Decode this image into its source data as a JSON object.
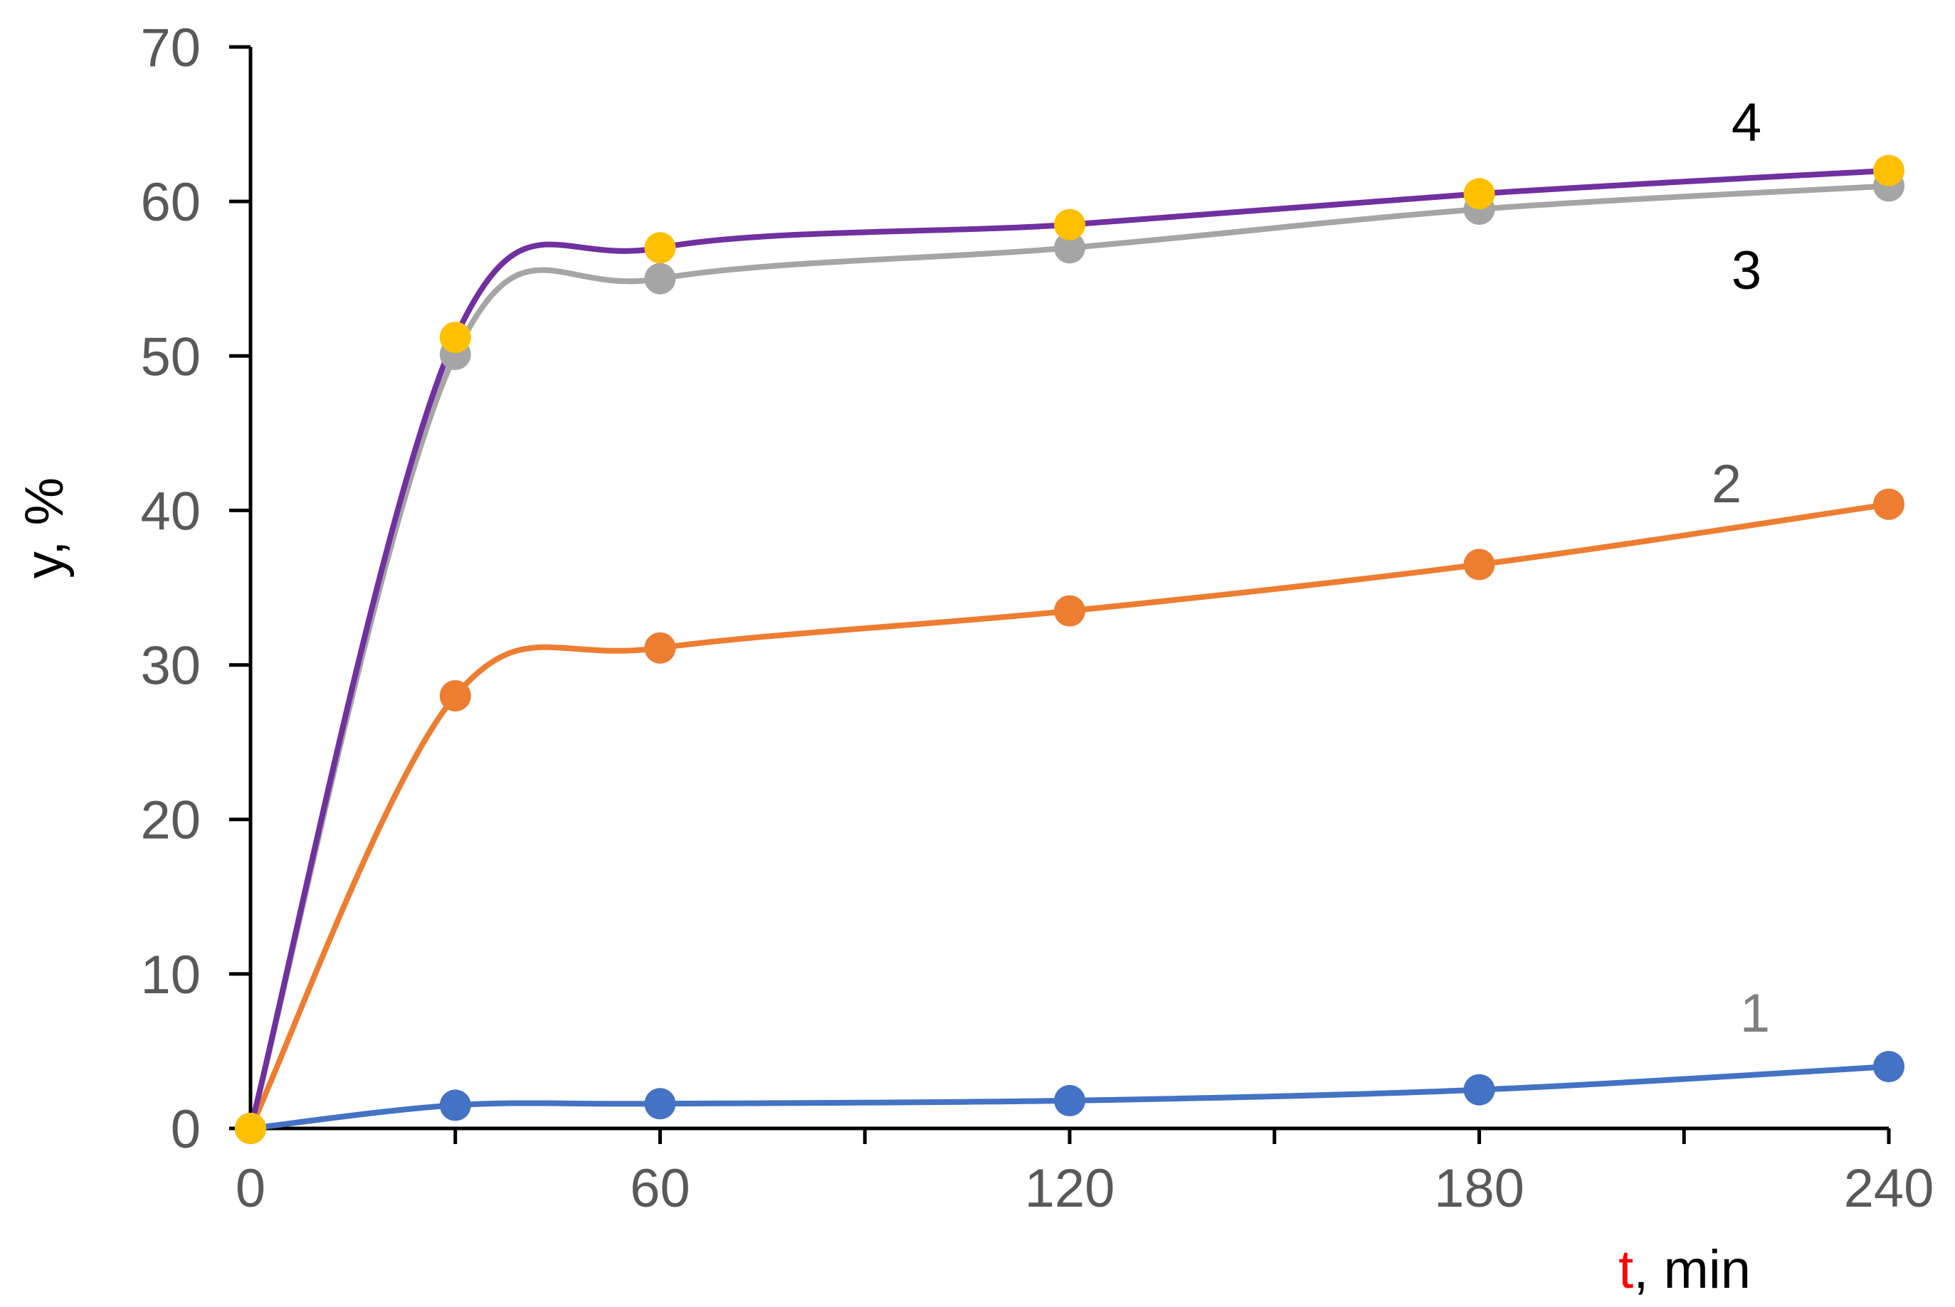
{
  "chart_data": {
    "type": "line",
    "title": "",
    "xlabel": {
      "variable": "t",
      "variable_color": "#ff0000",
      "unit": ", min"
    },
    "ylabel": "y, %",
    "xlim": [
      0,
      240
    ],
    "ylim": [
      0,
      70
    ],
    "x_ticks": [
      "0",
      "60",
      "120",
      "180",
      "240"
    ],
    "x_minor_ticks": [
      30,
      90,
      150,
      210
    ],
    "y_ticks": [
      "0",
      "10",
      "20",
      "30",
      "40",
      "50",
      "60",
      "70"
    ],
    "grid": false,
    "legend": "none",
    "x": [
      0,
      30,
      60,
      120,
      180,
      240
    ],
    "series": [
      {
        "name": "1",
        "line_color": "#4472c4",
        "marker_color": "#4472c4",
        "label_color": "#7f7f7f",
        "values": [
          0,
          1.5,
          1.6,
          1.8,
          2.5,
          4.0
        ]
      },
      {
        "name": "2",
        "line_color": "#ed7d31",
        "marker_color": "#ed7d31",
        "label_color": "#595959",
        "values": [
          0,
          28.0,
          31.1,
          33.5,
          36.5,
          40.4
        ]
      },
      {
        "name": "3",
        "line_color": "#a5a5a5",
        "marker_color": "#a5a5a5",
        "label_color": "#000000",
        "values": [
          0,
          50.1,
          55.0,
          57.0,
          59.5,
          61.0
        ]
      },
      {
        "name": "4",
        "line_color": "#7030a0",
        "marker_color": "#ffc000",
        "label_color": "#000000",
        "values": [
          0,
          51.2,
          57.0,
          58.5,
          60.5,
          62.0
        ]
      }
    ]
  }
}
